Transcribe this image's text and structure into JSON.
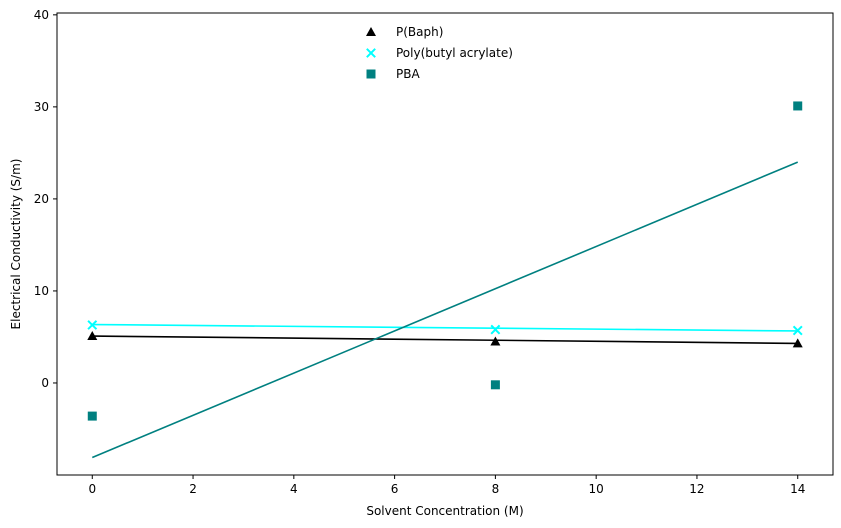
{
  "chart_data": {
    "type": "scatter",
    "title": "",
    "xlabel": "Solvent Concentration (M)",
    "ylabel": "Electrical Conductivity (S/m)",
    "xlim": [
      -0.7,
      14.7
    ],
    "ylim": [
      -10,
      40.2
    ],
    "xticks": [
      0,
      2,
      4,
      6,
      8,
      10,
      12,
      14
    ],
    "yticks": [
      0,
      10,
      20,
      30,
      40
    ],
    "grid": false,
    "legend_position": "top-center",
    "series": [
      {
        "name": "P(Baph)",
        "marker": "triangle",
        "color": "#000000",
        "x": [
          0,
          8,
          14
        ],
        "y": [
          5.1,
          4.5,
          4.3
        ],
        "fit": {
          "x": [
            0,
            14
          ],
          "y": [
            5.1,
            4.3
          ]
        }
      },
      {
        "name": "Poly(butyl acrylate)",
        "marker": "x",
        "color": "#00FFFF",
        "x": [
          0,
          8,
          14
        ],
        "y": [
          6.3,
          5.8,
          5.7
        ],
        "fit": {
          "x": [
            0,
            14
          ],
          "y": [
            6.35,
            5.65
          ]
        }
      },
      {
        "name": "PBA",
        "marker": "square",
        "color": "#008080",
        "x": [
          0,
          8,
          14
        ],
        "y": [
          -3.6,
          -0.2,
          30.1
        ],
        "fit": {
          "x": [
            0,
            14
          ],
          "y": [
            -8.1,
            24.0
          ]
        }
      }
    ]
  }
}
